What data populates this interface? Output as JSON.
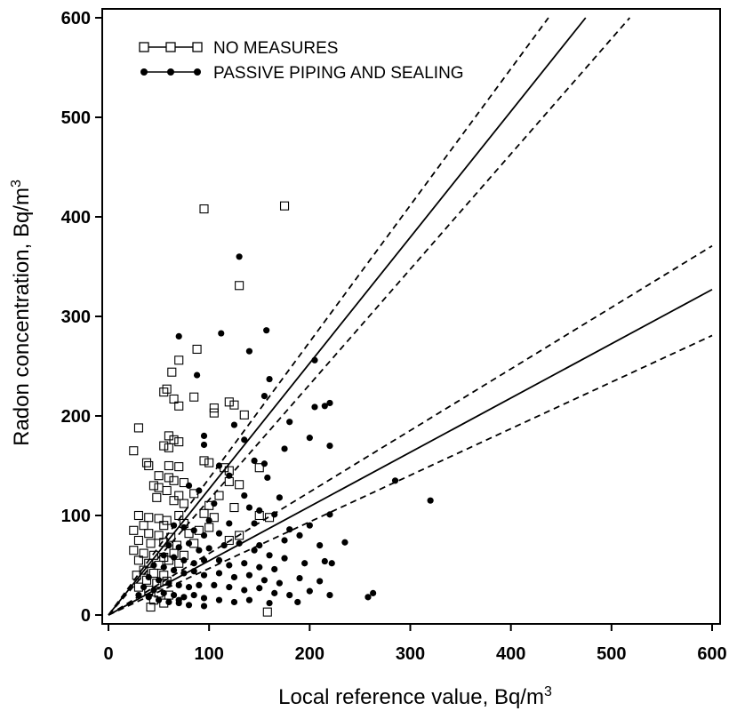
{
  "chart_data": {
    "type": "scatter",
    "title": "",
    "xlabel": "Local reference value, Bq/m",
    "xlabel_sup": "3",
    "ylabel": "Radon concentration, Bq/m",
    "ylabel_sup": "3",
    "xlim": [
      0,
      600
    ],
    "ylim": [
      0,
      600
    ],
    "xticks": [
      "0",
      "100",
      "200",
      "300",
      "400",
      "500",
      "600"
    ],
    "yticks": [
      "0",
      "100",
      "200",
      "300",
      "400",
      "500",
      "600"
    ],
    "grid": false,
    "legend_position": "top-left",
    "series": [
      {
        "name": "NO MEASURES",
        "marker": "open-square",
        "points": [
          [
            95,
            408
          ],
          [
            175,
            411
          ],
          [
            130,
            331
          ],
          [
            88,
            267
          ],
          [
            70,
            256
          ],
          [
            63,
            244
          ],
          [
            58,
            227
          ],
          [
            55,
            224
          ],
          [
            85,
            219
          ],
          [
            65,
            217
          ],
          [
            120,
            214
          ],
          [
            125,
            211
          ],
          [
            105,
            208
          ],
          [
            70,
            210
          ],
          [
            135,
            201
          ],
          [
            105,
            203
          ],
          [
            30,
            188
          ],
          [
            60,
            180
          ],
          [
            65,
            176
          ],
          [
            70,
            174
          ],
          [
            55,
            170
          ],
          [
            60,
            168
          ],
          [
            25,
            165
          ],
          [
            38,
            153
          ],
          [
            60,
            150
          ],
          [
            95,
            155
          ],
          [
            100,
            153
          ],
          [
            40,
            150
          ],
          [
            70,
            149
          ],
          [
            115,
            148
          ],
          [
            150,
            148
          ],
          [
            120,
            145
          ],
          [
            50,
            140
          ],
          [
            60,
            138
          ],
          [
            65,
            135
          ],
          [
            75,
            133
          ],
          [
            120,
            134
          ],
          [
            130,
            131
          ],
          [
            45,
            130
          ],
          [
            50,
            128
          ],
          [
            58,
            125
          ],
          [
            70,
            120
          ],
          [
            85,
            122
          ],
          [
            110,
            120
          ],
          [
            48,
            118
          ],
          [
            65,
            115
          ],
          [
            75,
            112
          ],
          [
            100,
            110
          ],
          [
            125,
            108
          ],
          [
            30,
            100
          ],
          [
            40,
            98
          ],
          [
            50,
            97
          ],
          [
            58,
            95
          ],
          [
            70,
            100
          ],
          [
            95,
            102
          ],
          [
            105,
            98
          ],
          [
            150,
            100
          ],
          [
            160,
            98
          ],
          [
            35,
            90
          ],
          [
            55,
            90
          ],
          [
            75,
            92
          ],
          [
            25,
            85
          ],
          [
            40,
            82
          ],
          [
            50,
            80
          ],
          [
            62,
            78
          ],
          [
            80,
            82
          ],
          [
            90,
            85
          ],
          [
            100,
            88
          ],
          [
            130,
            80
          ],
          [
            30,
            75
          ],
          [
            42,
            72
          ],
          [
            55,
            73
          ],
          [
            68,
            70
          ],
          [
            85,
            72
          ],
          [
            120,
            75
          ],
          [
            25,
            65
          ],
          [
            35,
            62
          ],
          [
            45,
            60
          ],
          [
            55,
            58
          ],
          [
            65,
            62
          ],
          [
            75,
            60
          ],
          [
            30,
            55
          ],
          [
            40,
            52
          ],
          [
            50,
            50
          ],
          [
            60,
            55
          ],
          [
            70,
            52
          ],
          [
            35,
            45
          ],
          [
            45,
            42
          ],
          [
            55,
            40
          ],
          [
            28,
            40
          ],
          [
            38,
            35
          ],
          [
            48,
            32
          ],
          [
            58,
            34
          ],
          [
            30,
            28
          ],
          [
            40,
            25
          ],
          [
            50,
            22
          ],
          [
            60,
            20
          ],
          [
            45,
            15
          ],
          [
            55,
            12
          ],
          [
            42,
            8
          ],
          [
            158,
            3
          ]
        ]
      },
      {
        "name": "PASSIVE PIPING AND SEALING",
        "marker": "filled-circle",
        "points": [
          [
            130,
            360
          ],
          [
            157,
            286
          ],
          [
            112,
            283
          ],
          [
            70,
            280
          ],
          [
            140,
            265
          ],
          [
            205,
            256
          ],
          [
            88,
            241
          ],
          [
            160,
            237
          ],
          [
            155,
            220
          ],
          [
            220,
            213
          ],
          [
            215,
            210
          ],
          [
            205,
            209
          ],
          [
            180,
            194
          ],
          [
            125,
            191
          ],
          [
            95,
            180
          ],
          [
            200,
            178
          ],
          [
            135,
            176
          ],
          [
            95,
            171
          ],
          [
            175,
            167
          ],
          [
            220,
            170
          ],
          [
            145,
            155
          ],
          [
            155,
            152
          ],
          [
            110,
            150
          ],
          [
            120,
            140
          ],
          [
            158,
            138
          ],
          [
            80,
            130
          ],
          [
            90,
            125
          ],
          [
            135,
            120
          ],
          [
            170,
            118
          ],
          [
            320,
            115
          ],
          [
            105,
            112
          ],
          [
            140,
            108
          ],
          [
            150,
            105
          ],
          [
            165,
            101
          ],
          [
            220,
            101
          ],
          [
            285,
            135
          ],
          [
            200,
            90
          ],
          [
            180,
            86
          ],
          [
            190,
            80
          ],
          [
            145,
            92
          ],
          [
            100,
            95
          ],
          [
            120,
            92
          ],
          [
            65,
            90
          ],
          [
            75,
            88
          ],
          [
            85,
            85
          ],
          [
            95,
            80
          ],
          [
            110,
            82
          ],
          [
            175,
            75
          ],
          [
            210,
            70
          ],
          [
            235,
            73
          ],
          [
            130,
            72
          ],
          [
            150,
            70
          ],
          [
            60,
            70
          ],
          [
            70,
            68
          ],
          [
            80,
            72
          ],
          [
            90,
            65
          ],
          [
            100,
            67
          ],
          [
            115,
            70
          ],
          [
            145,
            65
          ],
          [
            160,
            60
          ],
          [
            175,
            57
          ],
          [
            55,
            60
          ],
          [
            65,
            58
          ],
          [
            75,
            55
          ],
          [
            85,
            52
          ],
          [
            95,
            55
          ],
          [
            110,
            55
          ],
          [
            120,
            50
          ],
          [
            135,
            52
          ],
          [
            150,
            48
          ],
          [
            165,
            46
          ],
          [
            195,
            52
          ],
          [
            215,
            54
          ],
          [
            222,
            52
          ],
          [
            45,
            50
          ],
          [
            55,
            48
          ],
          [
            65,
            45
          ],
          [
            75,
            42
          ],
          [
            85,
            44
          ],
          [
            95,
            40
          ],
          [
            110,
            42
          ],
          [
            125,
            38
          ],
          [
            140,
            40
          ],
          [
            155,
            35
          ],
          [
            170,
            32
          ],
          [
            190,
            37
          ],
          [
            210,
            34
          ],
          [
            40,
            38
          ],
          [
            50,
            35
          ],
          [
            60,
            32
          ],
          [
            70,
            30
          ],
          [
            80,
            28
          ],
          [
            90,
            30
          ],
          [
            105,
            30
          ],
          [
            120,
            28
          ],
          [
            135,
            25
          ],
          [
            150,
            27
          ],
          [
            165,
            22
          ],
          [
            180,
            20
          ],
          [
            200,
            24
          ],
          [
            220,
            20
          ],
          [
            35,
            28
          ],
          [
            45,
            25
          ],
          [
            55,
            22
          ],
          [
            65,
            20
          ],
          [
            75,
            18
          ],
          [
            85,
            20
          ],
          [
            95,
            17
          ],
          [
            110,
            15
          ],
          [
            125,
            13
          ],
          [
            140,
            15
          ],
          [
            160,
            12
          ],
          [
            188,
            13
          ],
          [
            258,
            18
          ],
          [
            263,
            22
          ],
          [
            30,
            20
          ],
          [
            40,
            18
          ],
          [
            50,
            15
          ],
          [
            60,
            13
          ],
          [
            70,
            12
          ],
          [
            80,
            10
          ],
          [
            95,
            9
          ],
          [
            70,
            15
          ]
        ]
      }
    ],
    "fit_lines": [
      {
        "name": "no-measures-fit",
        "style": "solid",
        "slope": 1.265
      },
      {
        "name": "no-measures-upper",
        "style": "dashed",
        "slope": 1.372
      },
      {
        "name": "no-measures-lower",
        "style": "dashed",
        "slope": 1.158
      },
      {
        "name": "passive-fit",
        "style": "solid",
        "slope": 0.545
      },
      {
        "name": "passive-upper",
        "style": "dashed",
        "slope": 0.618
      },
      {
        "name": "passive-lower",
        "style": "dashed",
        "slope": 0.468
      }
    ]
  }
}
